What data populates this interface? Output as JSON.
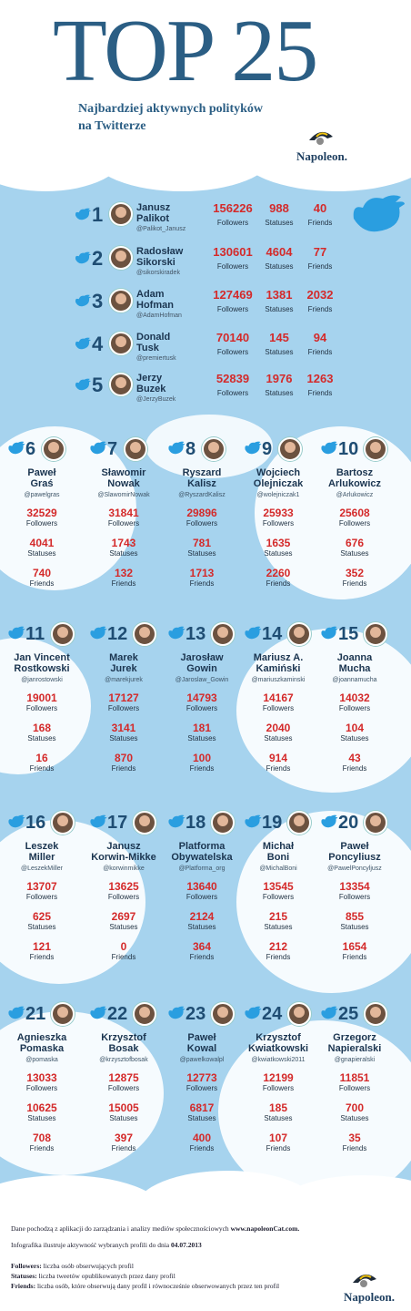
{
  "header": {
    "title": "TOP 25",
    "subtitle_line1": "Najbardziej aktywnych polityków",
    "subtitle_line2": "na Twitterze",
    "brand": "Napoleon."
  },
  "labels": {
    "followers": "Followers",
    "statuses": "Statuses",
    "friends": "Friends"
  },
  "top5": [
    {
      "rank": "1",
      "name1": "Janusz",
      "name2": "Palikot",
      "handle": "@Palikot_Janusz",
      "followers": "156226",
      "statuses": "988",
      "friends": "40"
    },
    {
      "rank": "2",
      "name1": "Radosław",
      "name2": "Sikorski",
      "handle": "@sikorskiradek",
      "followers": "130601",
      "statuses": "4604",
      "friends": "77"
    },
    {
      "rank": "3",
      "name1": "Adam",
      "name2": "Hofman",
      "handle": "@AdamHofman",
      "followers": "127469",
      "statuses": "1381",
      "friends": "2032"
    },
    {
      "rank": "4",
      "name1": "Donald",
      "name2": "Tusk",
      "handle": "@premiertusk",
      "followers": "70140",
      "statuses": "145",
      "friends": "94"
    },
    {
      "rank": "5",
      "name1": "Jerzy",
      "name2": "Buzek",
      "handle": "@JerzyBuzek",
      "followers": "52839",
      "statuses": "1976",
      "friends": "1263"
    }
  ],
  "grid": [
    {
      "rank": "6",
      "name1": "Paweł",
      "name2": "Graś",
      "handle": "@pawelgras",
      "followers": "32529",
      "statuses": "4041",
      "friends": "740"
    },
    {
      "rank": "7",
      "name1": "Sławomir",
      "name2": "Nowak",
      "handle": "@SlawomirNowak",
      "followers": "31841",
      "statuses": "1743",
      "friends": "132"
    },
    {
      "rank": "8",
      "name1": "Ryszard",
      "name2": "Kalisz",
      "handle": "@RyszardKalisz",
      "followers": "29896",
      "statuses": "781",
      "friends": "1713"
    },
    {
      "rank": "9",
      "name1": "Wojciech",
      "name2": "Olejniczak",
      "handle": "@wolejniczak1",
      "followers": "25933",
      "statuses": "1635",
      "friends": "2260"
    },
    {
      "rank": "10",
      "name1": "Bartosz",
      "name2": "Arlukowicz",
      "handle": "@Arlukowicz",
      "followers": "25608",
      "statuses": "676",
      "friends": "352"
    },
    {
      "rank": "11",
      "name1": "Jan Vincent",
      "name2": "Rostkowski",
      "handle": "@janrostowski",
      "followers": "19001",
      "statuses": "168",
      "friends": "16"
    },
    {
      "rank": "12",
      "name1": "Marek",
      "name2": "Jurek",
      "handle": "@marekjurek",
      "followers": "17127",
      "statuses": "3141",
      "friends": "870"
    },
    {
      "rank": "13",
      "name1": "Jarosław",
      "name2": "Gowin",
      "handle": "@Jaroslaw_Gowin",
      "followers": "14793",
      "statuses": "181",
      "friends": "100"
    },
    {
      "rank": "14",
      "name1": "Mariusz A.",
      "name2": "Kamiński",
      "handle": "@mariuszkaminski",
      "followers": "14167",
      "statuses": "2040",
      "friends": "914"
    },
    {
      "rank": "15",
      "name1": "Joanna",
      "name2": "Mucha",
      "handle": "@joannamucha",
      "followers": "14032",
      "statuses": "104",
      "friends": "43"
    },
    {
      "rank": "16",
      "name1": "Leszek",
      "name2": "Miller",
      "handle": "@LeszekMiller",
      "followers": "13707",
      "statuses": "625",
      "friends": "121"
    },
    {
      "rank": "17",
      "name1": "Janusz",
      "name2": "Korwin-Mikke",
      "handle": "@korwinmikke",
      "followers": "13625",
      "statuses": "2697",
      "friends": "0"
    },
    {
      "rank": "18",
      "name1": "Platforma",
      "name2": "Obywatelska",
      "handle": "@Platforma_org",
      "followers": "13640",
      "statuses": "2124",
      "friends": "364"
    },
    {
      "rank": "19",
      "name1": "Michał",
      "name2": "Boni",
      "handle": "@MichalBoni",
      "followers": "13545",
      "statuses": "215",
      "friends": "212"
    },
    {
      "rank": "20",
      "name1": "Paweł",
      "name2": "Poncyliusz",
      "handle": "@PawelPoncyljusz",
      "followers": "13354",
      "statuses": "855",
      "friends": "1654"
    },
    {
      "rank": "21",
      "name1": "Agnieszka",
      "name2": "Pomaska",
      "handle": "@pomaska",
      "followers": "13033",
      "statuses": "10625",
      "friends": "708"
    },
    {
      "rank": "22",
      "name1": "Krzysztof",
      "name2": "Bosak",
      "handle": "@krzysztofbosak",
      "followers": "12875",
      "statuses": "15005",
      "friends": "397"
    },
    {
      "rank": "23",
      "name1": "Paweł",
      "name2": "Kowal",
      "handle": "@pawelkowalpl",
      "followers": "12773",
      "statuses": "6817",
      "friends": "400"
    },
    {
      "rank": "24",
      "name1": "Krzysztof",
      "name2": "Kwiatkowski",
      "handle": "@kwiatkowski2011",
      "followers": "12199",
      "statuses": "185",
      "friends": "107"
    },
    {
      "rank": "25",
      "name1": "Grzegorz",
      "name2": "Napieralski",
      "handle": "@gnapieralski",
      "followers": "11851",
      "statuses": "700",
      "friends": "35"
    }
  ],
  "footer": {
    "line1_prefix": "Dane pochodzą z aplikacji do zarządzania i analizy mediów społecznościowych ",
    "line1_link": "www.napoleonCat.com.",
    "line2_prefix": "Infografika ilustruje aktywność wybranych profili do dnia ",
    "line2_date": "04.07.2013",
    "def_followers_term": "Followers:",
    "def_followers_text": " liczba osób obserwujących profil",
    "def_statuses_term": "Statuses:",
    "def_statuses_text": " liczba tweetów opublikowanych przez dany profil",
    "def_friends_term": "Friends:",
    "def_friends_text": " liczba osób, które obserwują dany profil i równocześnie obserwowanych przez ten profil"
  },
  "colors": {
    "title": "#2b5e84",
    "number": "#d42a2a",
    "background": "#a6d3ee",
    "bird": "#2a9ee0"
  }
}
